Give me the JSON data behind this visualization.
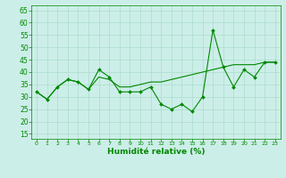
{
  "xlabel": "Humidité relative (%)",
  "bg_color": "#cceee8",
  "grid_color": "#aaddcc",
  "line_color": "#008800",
  "xlim": [
    -0.5,
    23.5
  ],
  "ylim": [
    13,
    67
  ],
  "yticks": [
    15,
    20,
    25,
    30,
    35,
    40,
    45,
    50,
    55,
    60,
    65
  ],
  "xticks": [
    0,
    1,
    2,
    3,
    4,
    5,
    6,
    7,
    8,
    9,
    10,
    11,
    12,
    13,
    14,
    15,
    16,
    17,
    18,
    19,
    20,
    21,
    22,
    23
  ],
  "series1": [
    32,
    29,
    34,
    37,
    36,
    33,
    41,
    38,
    32,
    32,
    32,
    34,
    27,
    25,
    27,
    24,
    30,
    57,
    42,
    34,
    41,
    38,
    44,
    44
  ],
  "series2": [
    32,
    29,
    34,
    37,
    36,
    33,
    38,
    37,
    34,
    34,
    35,
    36,
    36,
    37,
    38,
    39,
    40,
    41,
    42,
    43,
    43,
    43,
    44,
    44
  ]
}
